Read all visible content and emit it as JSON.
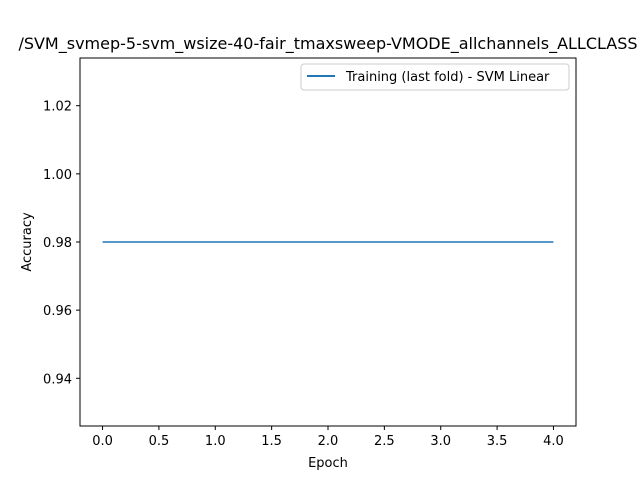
{
  "chart_data": {
    "type": "line",
    "title": "/SVM_svmep-5-svm_wsize-40-fair_tmaxsweep-VMODE_allchannels_ALLCLASS",
    "xlabel": "Epoch",
    "ylabel": "Accuracy",
    "xlim": [
      -0.2,
      4.2
    ],
    "ylim": [
      0.926,
      1.034
    ],
    "xticks": [
      0.0,
      0.5,
      1.0,
      1.5,
      2.0,
      2.5,
      3.0,
      3.5,
      4.0
    ],
    "xtick_labels": [
      "0.0",
      "0.5",
      "1.0",
      "1.5",
      "2.0",
      "2.5",
      "3.0",
      "3.5",
      "4.0"
    ],
    "yticks": [
      0.94,
      0.96,
      0.98,
      1.0,
      1.02
    ],
    "ytick_labels": [
      "0.94",
      "0.96",
      "0.98",
      "1.00",
      "1.02"
    ],
    "grid": false,
    "legend_position": "top-right",
    "series": [
      {
        "name": "Training (last fold) - SVM Linear",
        "color": "#1f77b4",
        "x": [
          0,
          1,
          2,
          3,
          4
        ],
        "y": [
          0.98,
          0.98,
          0.98,
          0.98,
          0.98
        ]
      }
    ]
  }
}
